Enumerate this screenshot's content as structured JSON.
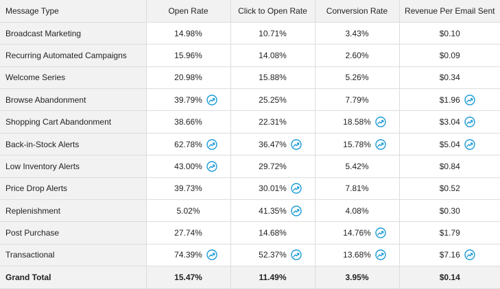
{
  "columns": [
    "Message Type",
    "Open Rate",
    "Click to Open Rate",
    "Conversion Rate",
    "Revenue Per Email Sent"
  ],
  "rows": [
    {
      "type": "Broadcast Marketing",
      "cells": [
        {
          "v": "14.98%",
          "up": false
        },
        {
          "v": "10.71%",
          "up": false
        },
        {
          "v": "3.43%",
          "up": false
        },
        {
          "v": "$0.10",
          "up": false
        }
      ]
    },
    {
      "type": "Recurring Automated Campaigns",
      "cells": [
        {
          "v": "15.96%",
          "up": false
        },
        {
          "v": "14.08%",
          "up": false
        },
        {
          "v": "2.60%",
          "up": false
        },
        {
          "v": "$0.09",
          "up": false
        }
      ]
    },
    {
      "type": "Welcome Series",
      "cells": [
        {
          "v": "20.98%",
          "up": false
        },
        {
          "v": "15.88%",
          "up": false
        },
        {
          "v": "5.26%",
          "up": false
        },
        {
          "v": "$0.34",
          "up": false
        }
      ]
    },
    {
      "type": "Browse Abandonment",
      "cells": [
        {
          "v": "39.79%",
          "up": true
        },
        {
          "v": "25.25%",
          "up": false
        },
        {
          "v": "7.79%",
          "up": false
        },
        {
          "v": "$1.96",
          "up": true
        }
      ]
    },
    {
      "type": "Shopping Cart Abandonment",
      "cells": [
        {
          "v": "38.66%",
          "up": false
        },
        {
          "v": "22.31%",
          "up": false
        },
        {
          "v": "18.58%",
          "up": true
        },
        {
          "v": "$3.04",
          "up": true
        }
      ]
    },
    {
      "type": "Back-in-Stock Alerts",
      "cells": [
        {
          "v": "62.78%",
          "up": true
        },
        {
          "v": "36.47%",
          "up": true
        },
        {
          "v": "15.78%",
          "up": true
        },
        {
          "v": "$5.04",
          "up": true
        }
      ]
    },
    {
      "type": "Low Inventory Alerts",
      "cells": [
        {
          "v": "43.00%",
          "up": true
        },
        {
          "v": "29.72%",
          "up": false
        },
        {
          "v": "5.42%",
          "up": false
        },
        {
          "v": "$0.84",
          "up": false
        }
      ]
    },
    {
      "type": "Price Drop Alerts",
      "cells": [
        {
          "v": "39.73%",
          "up": false
        },
        {
          "v": "30.01%",
          "up": true
        },
        {
          "v": "7.81%",
          "up": false
        },
        {
          "v": "$0.52",
          "up": false
        }
      ]
    },
    {
      "type": "Replenishment",
      "cells": [
        {
          "v": "5.02%",
          "up": false
        },
        {
          "v": "41.35%",
          "up": true
        },
        {
          "v": "4.08%",
          "up": false
        },
        {
          "v": "$0.30",
          "up": false
        }
      ]
    },
    {
      "type": "Post Purchase",
      "cells": [
        {
          "v": "27.74%",
          "up": false
        },
        {
          "v": "14.68%",
          "up": false
        },
        {
          "v": "14.76%",
          "up": true
        },
        {
          "v": "$1.79",
          "up": false
        }
      ]
    },
    {
      "type": "Transactional",
      "cells": [
        {
          "v": "74.39%",
          "up": true
        },
        {
          "v": "52.37%",
          "up": true
        },
        {
          "v": "13.68%",
          "up": true
        },
        {
          "v": "$7.16",
          "up": true
        }
      ]
    }
  ],
  "total": {
    "type": "Grand Total",
    "cells": [
      "15.47%",
      "11.49%",
      "3.95%",
      "$0.14"
    ]
  },
  "trend_icon": "trending-up-icon",
  "colors": {
    "accent": "#1a9bd7",
    "header_bg": "#f2f2f2",
    "border": "#dcdcdc"
  }
}
